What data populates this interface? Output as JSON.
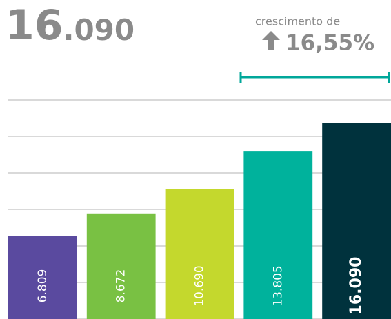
{
  "chart_data": {
    "type": "bar",
    "headline": [
      "16",
      ".090"
    ],
    "growth_caption": "crescimento de",
    "growth_value": "16,55%",
    "categories": [
      null,
      null,
      null,
      null,
      null
    ],
    "values": [
      6809,
      8672,
      10690,
      13805,
      16090
    ],
    "value_labels": [
      "6.809",
      "8.672",
      "10.690",
      "13.805",
      "16.090"
    ],
    "colors": [
      "#5a4a9f",
      "#79c143",
      "#c4d82d",
      "#00b29c",
      "#00323d"
    ],
    "ylim": [
      0,
      18000
    ],
    "yticks": [
      0,
      3000,
      6000,
      9000,
      12000,
      15000,
      18000
    ],
    "grid": true
  }
}
